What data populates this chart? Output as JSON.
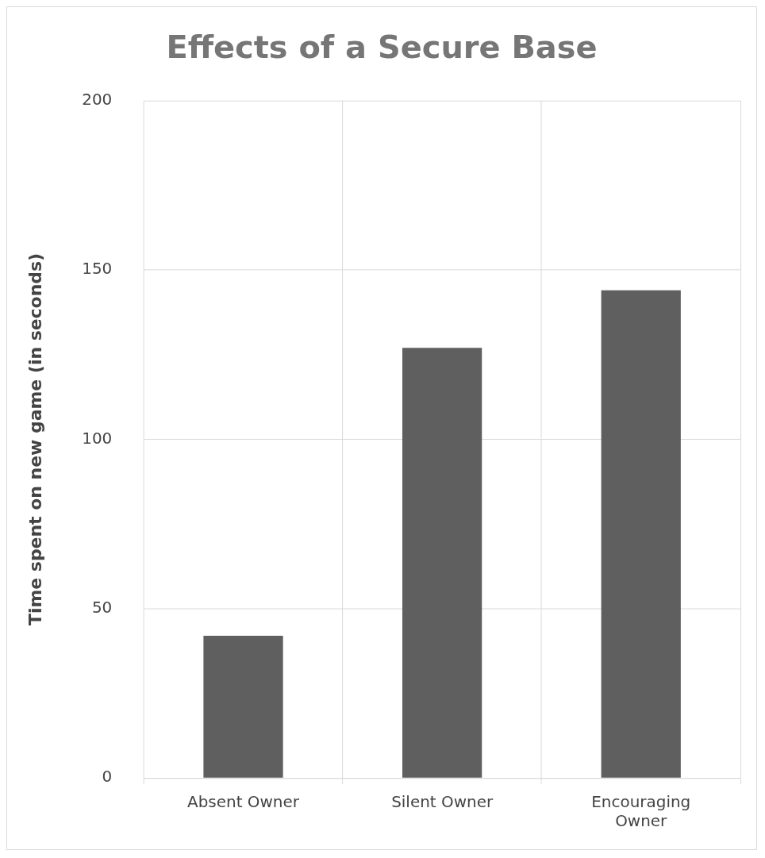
{
  "chart_data": {
    "type": "bar",
    "title": "Effects of a Secure Base",
    "ylabel": "Time spent on new game (in seconds)",
    "categories": [
      "Absent Owner",
      "Silent Owner",
      "Encouraging Owner"
    ],
    "values": [
      42,
      127,
      144
    ],
    "color": "#5f5f5f",
    "ylim": [
      0,
      200
    ],
    "yticks": [
      0,
      50,
      100,
      150,
      200
    ],
    "grid": true
  }
}
